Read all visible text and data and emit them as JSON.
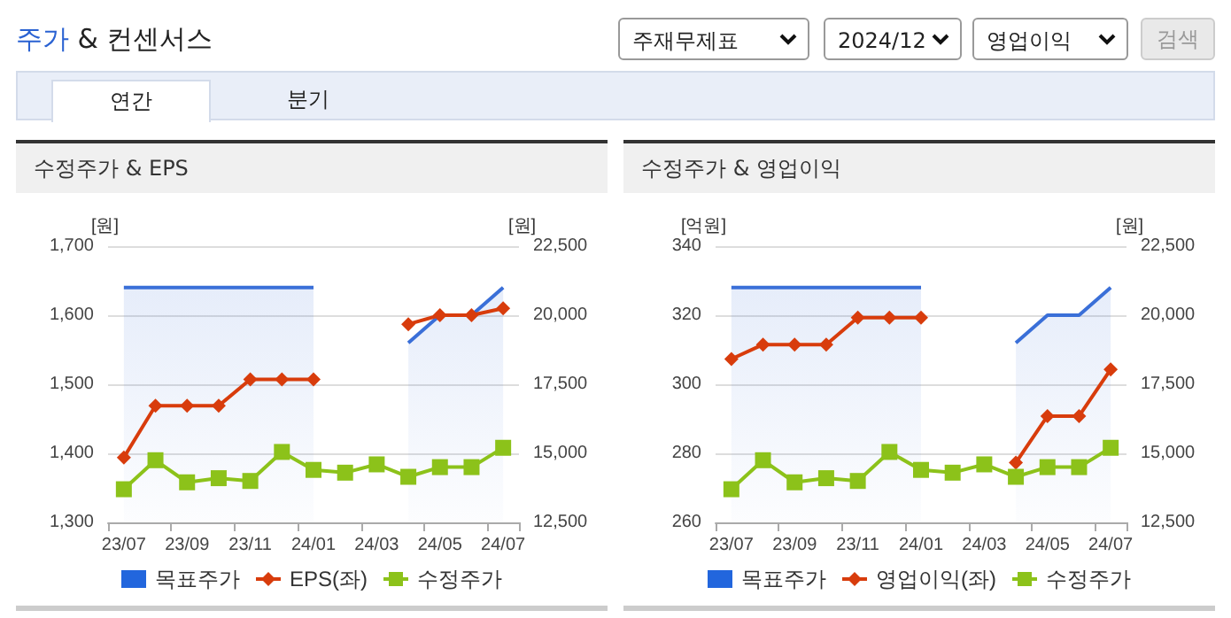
{
  "chart_data": [
    {
      "type": "other",
      "title": "주가 & 컨센서스",
      "annotations": [
        "주재무제표",
        "2024/12",
        "영업이익",
        "검색",
        "연간",
        "분기"
      ]
    },
    {
      "type": "line",
      "title": "수정주가 & EPS",
      "ylabel": "[원]",
      "y2label": "[원]",
      "categories": [
        "23/07",
        null,
        "23/09",
        null,
        "23/11",
        null,
        "24/01",
        null,
        "24/03",
        null,
        "24/05",
        null,
        "24/07"
      ],
      "series": [
        {
          "name": "목표주가",
          "type": "area",
          "axis": "y2",
          "color": "#3a6fd8",
          "values": [
            21000,
            21000,
            21000,
            21000,
            21000,
            21000,
            21000,
            null,
            null,
            19000,
            20000,
            20000,
            21000
          ]
        },
        {
          "name": "EPS(좌)",
          "type": "line",
          "marker": "diamond",
          "color": "#d83c0c",
          "values": [
            1394,
            1469,
            1469,
            1469,
            1507,
            1507,
            1507,
            null,
            null,
            1587,
            1600,
            1600,
            1610
          ]
        },
        {
          "name": "수정주가",
          "type": "line",
          "marker": "square",
          "axis": "y2",
          "color": "#8cc21a",
          "values": [
            13700,
            14750,
            13950,
            14100,
            14000,
            15050,
            14400,
            14300,
            14600,
            14150,
            14500,
            14500,
            15200
          ]
        }
      ],
      "ylim": [
        1300,
        1700
      ],
      "yticks": [
        {
          "value": 1300,
          "label": "1,300"
        },
        {
          "value": 1400,
          "label": "1,400"
        },
        {
          "value": 1500,
          "label": "1,500"
        },
        {
          "value": 1600,
          "label": "1,600"
        },
        {
          "value": 1700,
          "label": "1,700"
        }
      ],
      "y2lim": [
        12500,
        22500
      ],
      "y2ticks": [
        {
          "value": 12500,
          "label": "12,500"
        },
        {
          "value": 15000,
          "label": "15,000"
        },
        {
          "value": 17500,
          "label": "17,500"
        },
        {
          "value": 20000,
          "label": "20,000"
        },
        {
          "value": 22500,
          "label": "22,500"
        }
      ],
      "grid": "y",
      "legend": "bottom"
    },
    {
      "type": "line",
      "title": "수정주가 & 영업이익",
      "ylabel": "[억원]",
      "y2label": "[원]",
      "categories": [
        "23/07",
        null,
        "23/09",
        null,
        "23/11",
        null,
        "24/01",
        null,
        "24/03",
        null,
        "24/05",
        null,
        "24/07"
      ],
      "series": [
        {
          "name": "목표주가",
          "type": "area",
          "axis": "y2",
          "color": "#3a6fd8",
          "values": [
            21000,
            21000,
            21000,
            21000,
            21000,
            21000,
            21000,
            null,
            null,
            19000,
            20000,
            20000,
            21000
          ]
        },
        {
          "name": "영업이익(좌)",
          "type": "line",
          "marker": "diamond",
          "color": "#d83c0c",
          "values": [
            307.3,
            311.5,
            311.5,
            311.5,
            319.3,
            319.3,
            319.3,
            null,
            null,
            277.3,
            290.8,
            290.8,
            304.3
          ]
        },
        {
          "name": "수정주가",
          "type": "line",
          "marker": "square",
          "axis": "y2",
          "color": "#8cc21a",
          "values": [
            13700,
            14750,
            13950,
            14100,
            14000,
            15050,
            14400,
            14300,
            14600,
            14150,
            14500,
            14500,
            15200
          ]
        }
      ],
      "ylim": [
        260,
        340
      ],
      "yticks": [
        260,
        280,
        300,
        320,
        340
      ],
      "y2lim": [
        12500,
        22500
      ],
      "y2ticks": [
        {
          "value": 12500,
          "label": "12,500"
        },
        {
          "value": 15000,
          "label": "15,000"
        },
        {
          "value": 17500,
          "label": "17,500"
        },
        {
          "value": 20000,
          "label": "20,000"
        },
        {
          "value": 22500,
          "label": "22,500"
        }
      ],
      "grid": "y",
      "legend": "bottom"
    }
  ]
}
